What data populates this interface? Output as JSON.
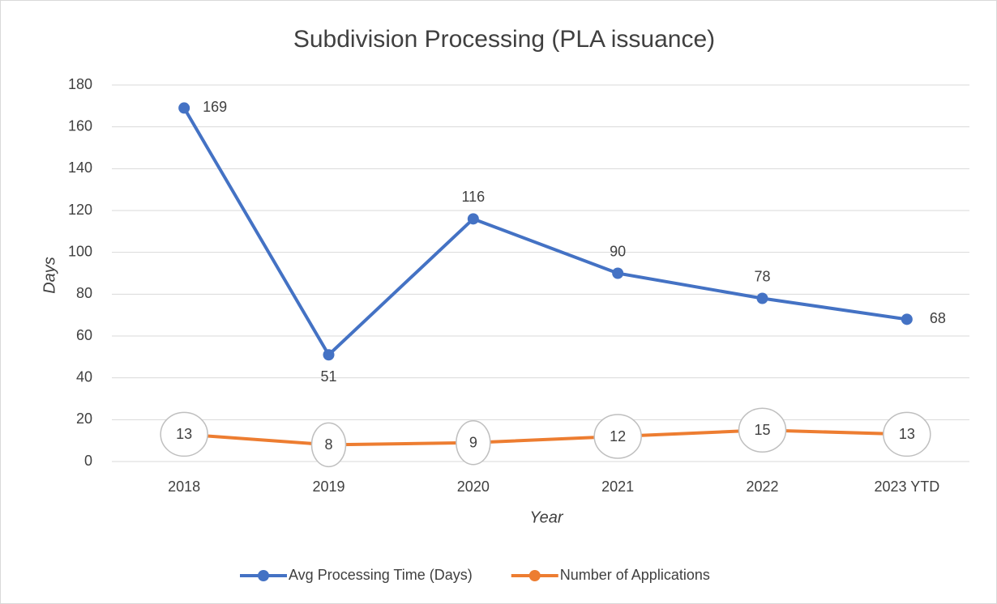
{
  "chart_data": {
    "type": "line",
    "title": "Subdivision Processing (PLA issuance)",
    "x_label": "Year",
    "y_label": "Days",
    "categories": [
      "2018",
      "2019",
      "2020",
      "2021",
      "2022",
      "2023 YTD"
    ],
    "series": [
      {
        "name": "Avg Processing Time (Days)",
        "color": "#4472c4",
        "values": [
          169,
          51,
          116,
          90,
          78,
          68
        ]
      },
      {
        "name": "Number of Applications",
        "color": "#ed7d31",
        "values": [
          13,
          8,
          9,
          12,
          15,
          13
        ]
      }
    ],
    "ylim": [
      0,
      180
    ],
    "yticks": [
      0,
      20,
      40,
      60,
      80,
      100,
      120,
      140,
      160,
      180
    ],
    "grid": true,
    "legend": "bottom"
  }
}
